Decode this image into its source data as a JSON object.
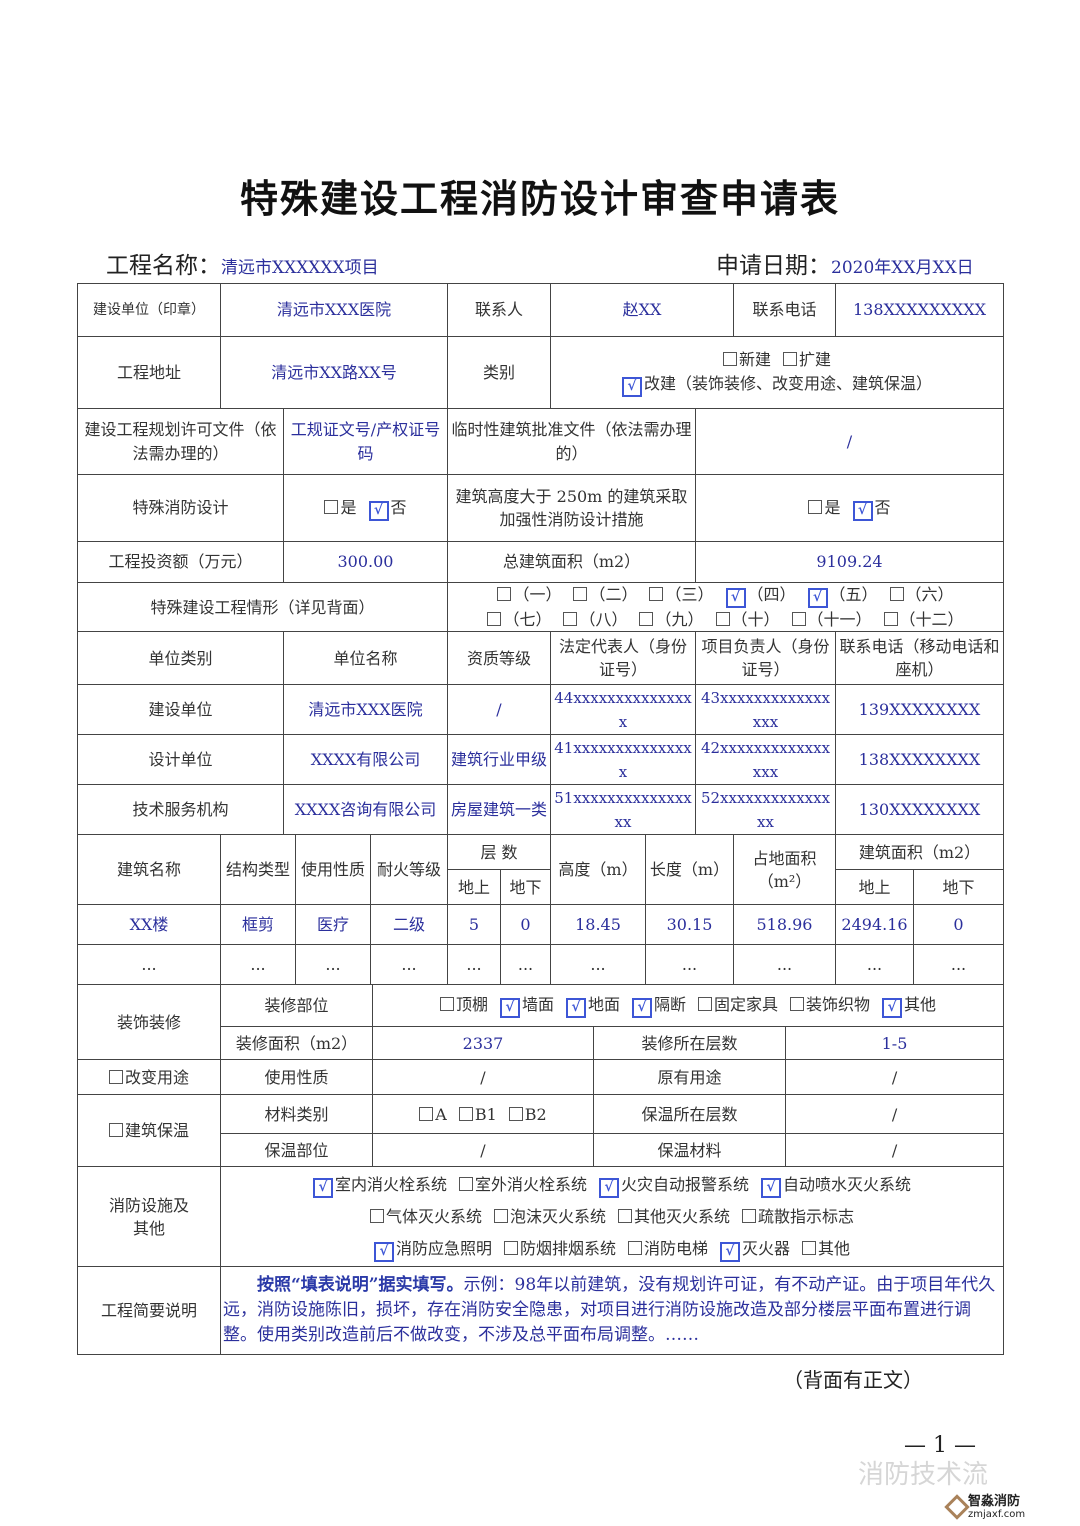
{
  "title": "特殊建设工程消防设计审查申请表",
  "header": {
    "project_name_label": "工程名称：",
    "project_name": "清远市XXXXXX项目",
    "apply_date_label": "申请日期：",
    "apply_date": "2020年XX月XX日"
  },
  "basic": {
    "builder_label": "建设单位（印章）",
    "builder": "清远市XXX医院",
    "contact_label": "联系人",
    "contact": "赵XX",
    "phone_label": "联系电话",
    "phone": "138XXXXXXXXX",
    "address_label": "工程地址",
    "address": "清远市XX路XX号",
    "category_label": "类别",
    "category_opts": [
      {
        "label": "新建",
        "checked": false
      },
      {
        "label": "扩建",
        "checked": false
      }
    ],
    "category_opts2": [
      {
        "label": "改建（装饰装修、改变用途、建筑保温）",
        "checked": true
      }
    ],
    "permit_label": "建设工程规划许可文件（依法需办理的）",
    "permit": "工规证文号/产权证号码",
    "temp_label": "临时性建筑批准文件（依法需办理的）",
    "temp": "/",
    "special_label": "特殊消防设计",
    "special_opts": [
      {
        "label": "是",
        "checked": false
      },
      {
        "label": "否",
        "checked": true
      }
    ],
    "height_label": "建筑高度大于 250m 的建筑采取加强性消防设计措施",
    "height_opts": [
      {
        "label": "是",
        "checked": false
      },
      {
        "label": "否",
        "checked": true
      }
    ],
    "invest_label": "工程投资额（万元）",
    "invest": "300.00",
    "area_label": "总建筑面积（m2）",
    "area": "9109.24",
    "situation_label": "特殊建设工程情形（详见背面）",
    "situation_opts": [
      {
        "label": "（一）",
        "checked": false
      },
      {
        "label": "（二）",
        "checked": false
      },
      {
        "label": "（三）",
        "checked": false
      },
      {
        "label": "（四）",
        "checked": true
      },
      {
        "label": "（五）",
        "checked": true
      },
      {
        "label": "（六）",
        "checked": false
      }
    ],
    "situation_opts2": [
      {
        "label": "（七）",
        "checked": false
      },
      {
        "label": "（八）",
        "checked": false
      },
      {
        "label": "（九）",
        "checked": false
      },
      {
        "label": "（十）",
        "checked": false
      },
      {
        "label": "（十一）",
        "checked": false
      },
      {
        "label": "（十二）",
        "checked": false
      }
    ]
  },
  "units": {
    "headers": [
      "单位类别",
      "单位名称",
      "资质等级",
      "法定代表人（身份证号）",
      "项目负责人（身份证号）",
      "联系电话（移动电话和座机）"
    ],
    "rows": [
      [
        "建设单位",
        "清远市XXX医院",
        "/",
        "44xxxxxxxxxxxxxxx",
        "43xxxxxxxxxxxxxxxx",
        "139XXXXXXXX"
      ],
      [
        "设计单位",
        "XXXX有限公司",
        "建筑行业甲级",
        "41xxxxxxxxxxxxxxx",
        "42xxxxxxxxxxxxxxxx",
        "138XXXXXXXX"
      ],
      [
        "技术服务机构",
        "XXXX咨询有限公司",
        "房屋建筑一类",
        "51xxxxxxxxxxxxxxxx",
        "52xxxxxxxxxxxxxxx",
        "130XXXXXXXX"
      ]
    ]
  },
  "buildings": {
    "h_name": "建筑名称",
    "h_struct": "结构类型",
    "h_use": "使用性质",
    "h_fire": "耐火等级",
    "h_floors": "层 数",
    "h_above": "地上",
    "h_below": "地下",
    "h_height": "高度（m）",
    "h_length": "长度（m）",
    "h_footprint": "占地面积（m²）",
    "h_area": "建筑面积（m2）",
    "h_area_above": "地上",
    "h_area_below": "地下",
    "rows": [
      [
        "XX楼",
        "框剪",
        "医疗",
        "二级",
        "5",
        "0",
        "18.45",
        "30.15",
        "518.96",
        "2494.16",
        "0"
      ],
      [
        "...",
        "...",
        "...",
        "...",
        "...",
        "...",
        "...",
        "...",
        "...",
        "...",
        "..."
      ]
    ]
  },
  "decoration": {
    "label": "装饰装修",
    "parts_label": "装修部位",
    "parts_opts": [
      {
        "label": "顶棚",
        "checked": false
      },
      {
        "label": "墙面",
        "checked": true
      },
      {
        "label": "地面",
        "checked": true
      },
      {
        "label": "隔断",
        "checked": true
      },
      {
        "label": "固定家具",
        "checked": false
      },
      {
        "label": "装饰织物",
        "checked": false
      },
      {
        "label": "其他",
        "checked": true
      }
    ],
    "area_label": "装修面积（m2）",
    "area": "2337",
    "floors_label": "装修所在层数",
    "floors": "1-5"
  },
  "use_change": {
    "opt": [
      {
        "label": "改变用途",
        "checked": false
      }
    ],
    "nature_label": "使用性质",
    "nature": "/",
    "orig_label": "原有用途",
    "orig": "/"
  },
  "insulation": {
    "opt": [
      {
        "label": "建筑保温",
        "checked": false
      }
    ],
    "material_label": "材料类别",
    "material_opts": [
      {
        "label": "A",
        "checked": false
      },
      {
        "label": "B1",
        "checked": false
      },
      {
        "label": "B2",
        "checked": false
      }
    ],
    "floors_label": "保温所在层数",
    "floors": "/",
    "part_label": "保温部位",
    "part": "/",
    "mat_label": "保温材料",
    "mat": "/"
  },
  "facilities": {
    "label": "消防设施及其他",
    "opts1": [
      {
        "label": "室内消火栓系统",
        "checked": true
      },
      {
        "label": "室外消火栓系统",
        "checked": false
      },
      {
        "label": "火灾自动报警系统",
        "checked": true
      },
      {
        "label": "自动喷水灭火系统",
        "checked": true
      }
    ],
    "opts2": [
      {
        "label": "气体灭火系统",
        "checked": false
      },
      {
        "label": "泡沫灭火系统",
        "checked": false
      },
      {
        "label": "其他灭火系统",
        "checked": false
      },
      {
        "label": "疏散指示标志",
        "checked": false
      }
    ],
    "opts3": [
      {
        "label": "消防应急照明",
        "checked": true
      },
      {
        "label": "防烟排烟系统",
        "checked": false
      },
      {
        "label": "消防电梯",
        "checked": false
      },
      {
        "label": "灭火器",
        "checked": true
      },
      {
        "label": "其他",
        "checked": false
      }
    ]
  },
  "summary": {
    "label": "工程简要说明",
    "bold": "按照“填表说明”据实填写。",
    "text": "示例：98年以前建筑，没有规划许可证，有不动产证。由于项目年代久远，消防设施陈旧，损坏，存在消防安全隐患，对项目进行消防设施改造及部分楼层平面布置进行调整。使用类别改造前后不做改变，不涉及总平面布局调整。……"
  },
  "footer": {
    "back_note": "（背面有正文）",
    "page": "— 1 —",
    "watermark": "消防技术流",
    "logo_name": "智淼消防",
    "logo_url": "zmjaxf.com"
  },
  "colors": {
    "fill_text": "#2b2f9c",
    "checkbox": "#3d56d6"
  }
}
